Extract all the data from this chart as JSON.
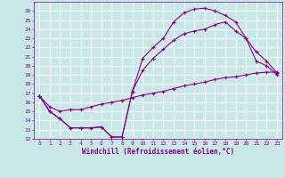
{
  "title": "",
  "xlabel": "Windchill (Refroidissement éolien,°C)",
  "bg_color": "#c8e8e8",
  "grid_color": "#b0d8d8",
  "line_color": "#880088",
  "xlim": [
    -0.5,
    23.5
  ],
  "ylim": [
    12,
    27
  ],
  "xticks": [
    0,
    1,
    2,
    3,
    4,
    5,
    6,
    7,
    8,
    9,
    10,
    11,
    12,
    13,
    14,
    15,
    16,
    17,
    18,
    19,
    20,
    21,
    22,
    23
  ],
  "yticks": [
    12,
    13,
    14,
    15,
    16,
    17,
    18,
    19,
    20,
    21,
    22,
    23,
    24,
    25,
    26
  ],
  "curve1_x": [
    0,
    1,
    2,
    3,
    4,
    5,
    6,
    7,
    8,
    9,
    10,
    11,
    12,
    13,
    14,
    15,
    16,
    17,
    18,
    19,
    20,
    21,
    22,
    23
  ],
  "curve1_y": [
    16.7,
    15.0,
    14.2,
    13.2,
    13.2,
    13.2,
    13.3,
    12.2,
    12.2,
    17.2,
    20.8,
    22.0,
    23.0,
    24.8,
    25.8,
    26.2,
    26.3,
    26.0,
    25.5,
    24.8,
    23.0,
    20.5,
    20.0,
    19.0
  ],
  "curve2_x": [
    0,
    1,
    2,
    3,
    4,
    5,
    6,
    7,
    8,
    9,
    10,
    11,
    12,
    13,
    14,
    15,
    16,
    17,
    18,
    19,
    20,
    21,
    22,
    23
  ],
  "curve2_y": [
    16.7,
    15.0,
    14.2,
    13.2,
    13.2,
    13.2,
    13.3,
    12.2,
    12.2,
    17.2,
    19.5,
    20.8,
    21.8,
    22.8,
    23.5,
    23.8,
    24.0,
    24.5,
    24.8,
    23.8,
    23.0,
    21.5,
    20.5,
    19.2
  ],
  "curve3_x": [
    0,
    1,
    2,
    3,
    4,
    5,
    6,
    7,
    8,
    9,
    10,
    11,
    12,
    13,
    14,
    15,
    16,
    17,
    18,
    19,
    20,
    21,
    22,
    23
  ],
  "curve3_y": [
    16.7,
    15.5,
    15.0,
    15.2,
    15.2,
    15.5,
    15.8,
    16.0,
    16.2,
    16.5,
    16.8,
    17.0,
    17.2,
    17.5,
    17.8,
    18.0,
    18.2,
    18.5,
    18.7,
    18.8,
    19.0,
    19.2,
    19.3,
    19.3
  ]
}
